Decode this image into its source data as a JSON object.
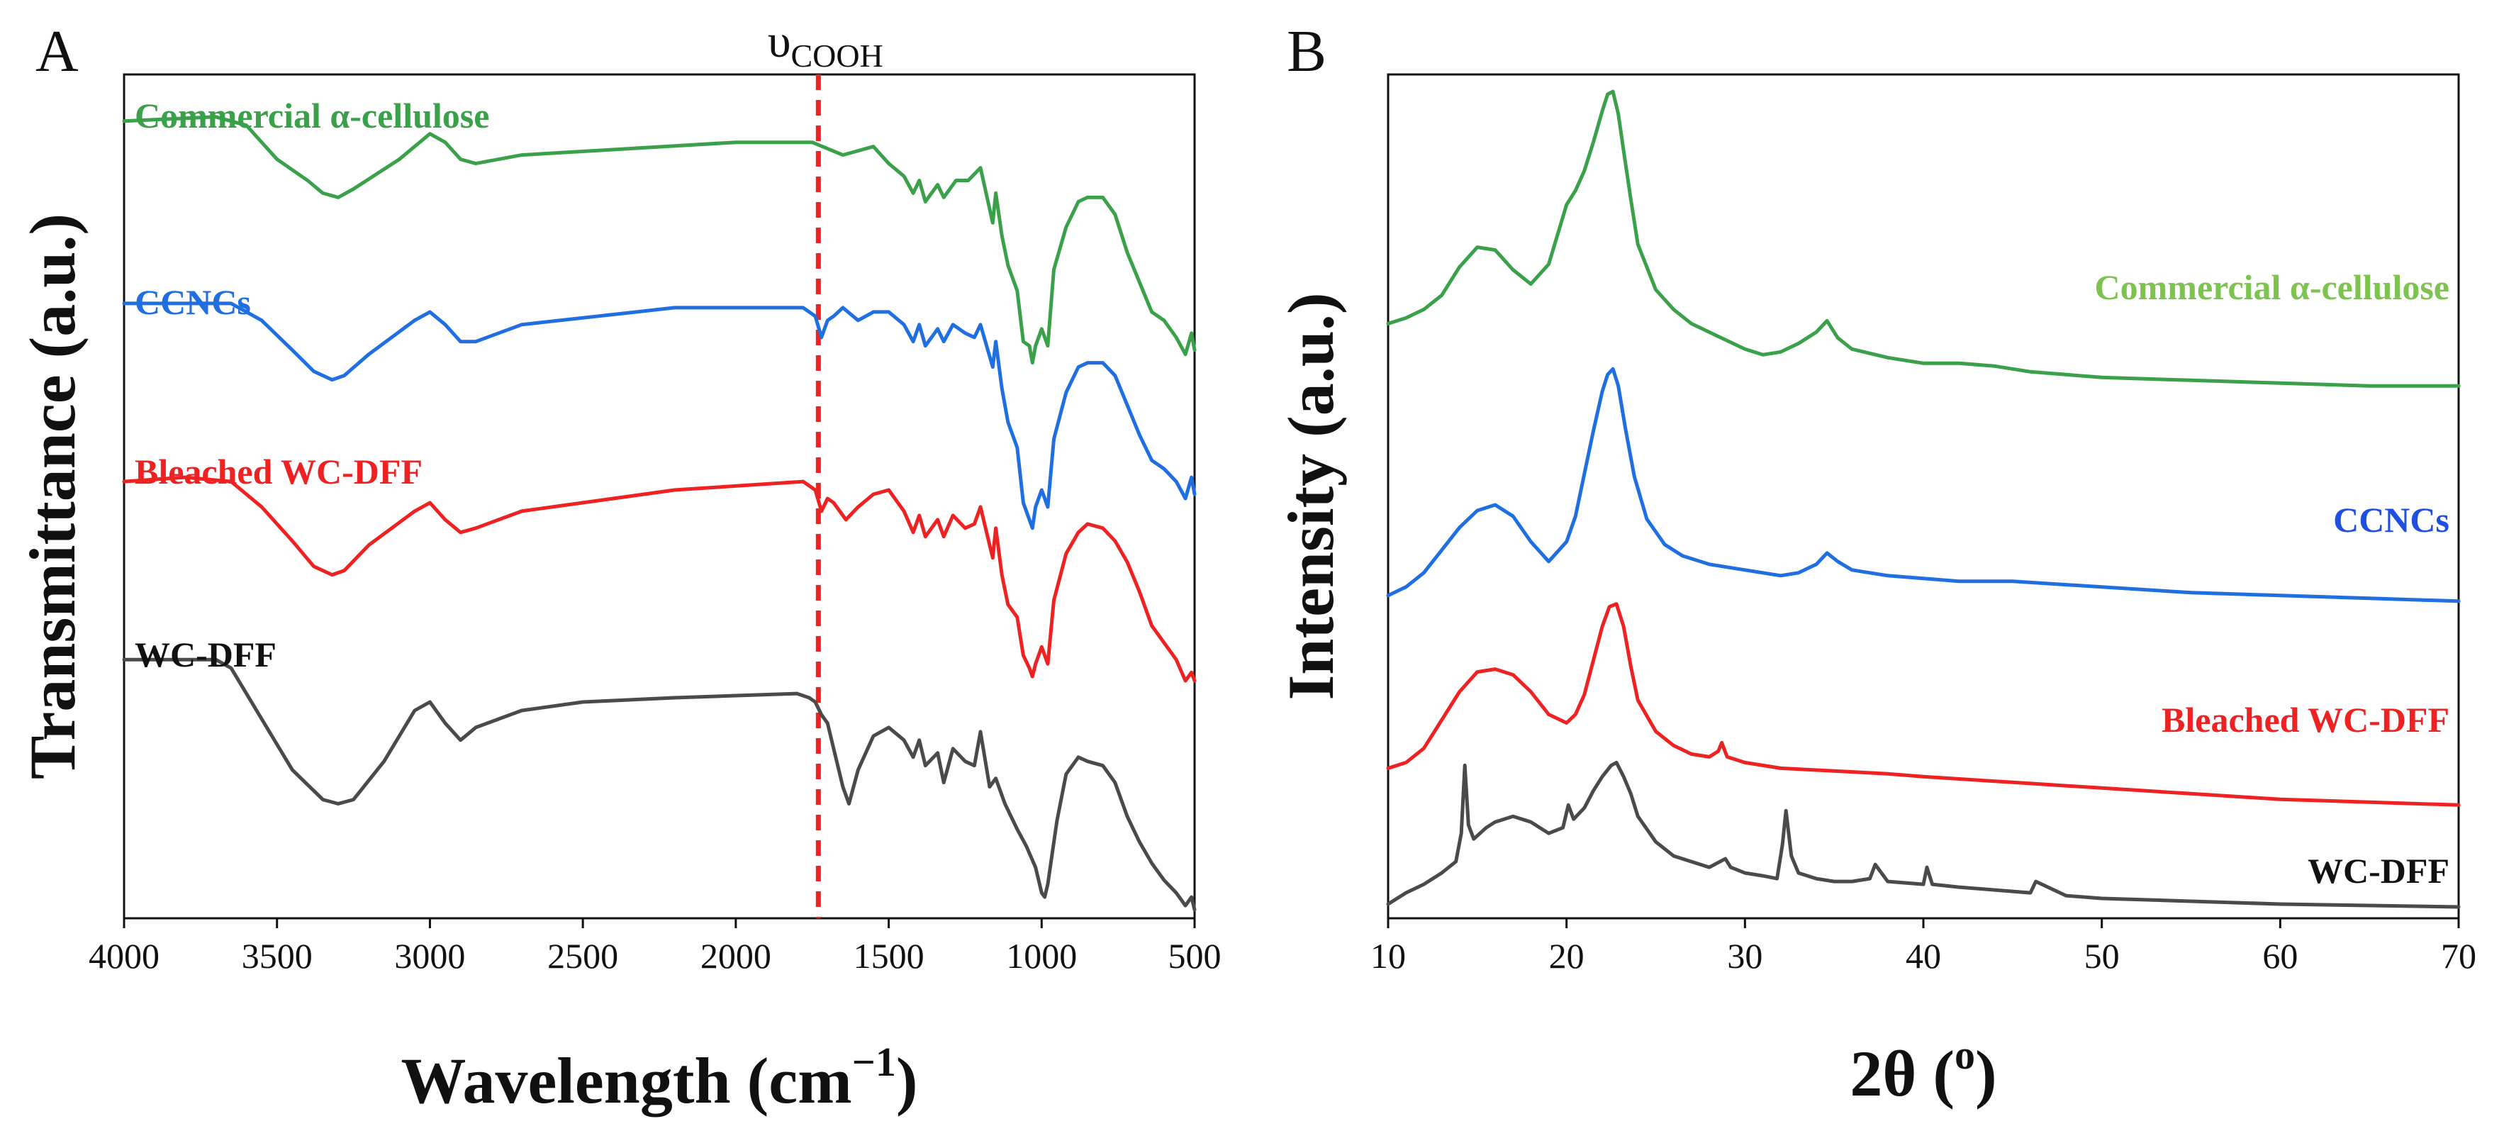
{
  "chart_data": [
    {
      "panel": "A",
      "type": "line",
      "xlabel": "Wavelength (cm",
      "xlabel_sup": "−1",
      "xlabel_close": ")",
      "ylabel": "Transmittance (a.u.)",
      "xlim": [
        4000,
        500
      ],
      "xticks": [
        "4000",
        "3500",
        "3000",
        "2500",
        "2000",
        "1500",
        "1000",
        "500"
      ],
      "xtick_values": [
        4000,
        3500,
        3000,
        2500,
        2000,
        1500,
        1000,
        500
      ],
      "ylim": [
        -1.5,
        18.4
      ],
      "yticks_shown": false,
      "reference_line": {
        "x": 1730,
        "color": "#ee2222",
        "style": "dashed",
        "label": "υ",
        "label_sub": "COOH"
      },
      "series": [
        {
          "name": "Commercial α-cellulose",
          "color": "#3aa04a",
          "baseline": 17.3,
          "x": [
            4000,
            3850,
            3700,
            3600,
            3500,
            3400,
            3350,
            3300,
            3250,
            3100,
            3000,
            2950,
            2900,
            2850,
            2700,
            2000,
            1750,
            1650,
            1600,
            1550,
            1500,
            1450,
            1420,
            1400,
            1380,
            1340,
            1320,
            1280,
            1240,
            1200,
            1160,
            1150,
            1130,
            1110,
            1080,
            1060,
            1040,
            1030,
            1020,
            1000,
            980,
            960,
            920,
            880,
            850,
            800,
            760,
            720,
            680,
            640,
            600,
            560,
            530,
            510,
            500
          ],
          "y": [
            17.3,
            17.35,
            17.4,
            17.2,
            16.4,
            15.9,
            15.6,
            15.5,
            15.7,
            16.4,
            17.0,
            16.8,
            16.4,
            16.3,
            16.5,
            16.8,
            16.8,
            16.5,
            16.6,
            16.7,
            16.3,
            16.0,
            15.6,
            15.9,
            15.4,
            15.8,
            15.5,
            15.9,
            15.9,
            16.2,
            14.9,
            15.6,
            14.6,
            13.9,
            13.3,
            12.1,
            12.0,
            11.6,
            12.0,
            12.4,
            12.0,
            13.8,
            14.8,
            15.4,
            15.5,
            15.5,
            15.1,
            14.2,
            13.5,
            12.8,
            12.6,
            12.2,
            11.8,
            12.3,
            11.9
          ]
        },
        {
          "name": "CCNCs",
          "color": "#1f6fe0",
          "baseline": 13.0,
          "x": [
            4000,
            3800,
            3650,
            3550,
            3450,
            3380,
            3320,
            3280,
            3200,
            3050,
            3000,
            2950,
            2900,
            2850,
            2700,
            2200,
            2000,
            1780,
            1740,
            1720,
            1700,
            1680,
            1650,
            1600,
            1550,
            1500,
            1450,
            1420,
            1400,
            1380,
            1340,
            1320,
            1290,
            1250,
            1220,
            1200,
            1160,
            1150,
            1130,
            1110,
            1080,
            1060,
            1040,
            1030,
            1020,
            1000,
            980,
            960,
            920,
            880,
            850,
            800,
            760,
            720,
            680,
            640,
            600,
            560,
            530,
            510,
            500
          ],
          "y": [
            13.0,
            13.0,
            13.0,
            12.6,
            11.9,
            11.4,
            11.2,
            11.3,
            11.8,
            12.6,
            12.8,
            12.5,
            12.1,
            12.1,
            12.5,
            12.9,
            12.9,
            12.9,
            12.7,
            12.2,
            12.6,
            12.7,
            12.9,
            12.6,
            12.8,
            12.8,
            12.5,
            12.1,
            12.5,
            12.0,
            12.4,
            12.1,
            12.5,
            12.3,
            12.2,
            12.5,
            11.5,
            12.1,
            11.0,
            10.2,
            9.6,
            8.3,
            7.9,
            7.7,
            8.2,
            8.6,
            8.2,
            9.8,
            10.9,
            11.5,
            11.6,
            11.6,
            11.3,
            10.6,
            9.9,
            9.3,
            9.1,
            8.8,
            8.4,
            8.9,
            8.5
          ]
        },
        {
          "name": "Bleached WC-DFF",
          "color": "#ee2222",
          "baseline": 8.8,
          "x": [
            4000,
            3800,
            3650,
            3550,
            3450,
            3380,
            3320,
            3280,
            3200,
            3050,
            3000,
            2950,
            2900,
            2850,
            2700,
            2200,
            1780,
            1740,
            1720,
            1700,
            1680,
            1640,
            1600,
            1550,
            1500,
            1450,
            1420,
            1400,
            1380,
            1340,
            1320,
            1290,
            1250,
            1220,
            1200,
            1160,
            1150,
            1130,
            1110,
            1080,
            1060,
            1040,
            1030,
            1020,
            1000,
            980,
            960,
            920,
            880,
            850,
            800,
            760,
            720,
            680,
            640,
            600,
            560,
            530,
            510,
            500
          ],
          "y": [
            8.8,
            8.9,
            8.8,
            8.2,
            7.4,
            6.8,
            6.6,
            6.7,
            7.3,
            8.1,
            8.3,
            7.9,
            7.6,
            7.7,
            8.1,
            8.6,
            8.8,
            8.6,
            8.1,
            8.4,
            8.3,
            7.9,
            8.2,
            8.5,
            8.6,
            8.1,
            7.6,
            8.0,
            7.5,
            7.9,
            7.5,
            8.0,
            7.7,
            7.8,
            8.2,
            7.0,
            7.7,
            6.6,
            5.9,
            5.6,
            4.7,
            4.4,
            4.2,
            4.5,
            4.9,
            4.5,
            6.0,
            7.1,
            7.6,
            7.8,
            7.7,
            7.4,
            6.9,
            6.2,
            5.4,
            5.0,
            4.6,
            4.1,
            4.3,
            4.1
          ]
        },
        {
          "name": "WC-DFF",
          "color": "#4a4a4a",
          "baseline": 4.6,
          "x": [
            4000,
            3800,
            3700,
            3650,
            3550,
            3450,
            3350,
            3300,
            3250,
            3150,
            3050,
            3000,
            2950,
            2900,
            2850,
            2700,
            2500,
            2200,
            1800,
            1760,
            1740,
            1720,
            1700,
            1680,
            1650,
            1630,
            1600,
            1550,
            1500,
            1450,
            1420,
            1400,
            1380,
            1340,
            1320,
            1290,
            1250,
            1220,
            1200,
            1170,
            1150,
            1120,
            1080,
            1050,
            1020,
            1000,
            990,
            980,
            950,
            920,
            880,
            850,
            800,
            760,
            720,
            680,
            640,
            600,
            560,
            530,
            510,
            500
          ],
          "y": [
            4.6,
            4.6,
            4.6,
            4.4,
            3.2,
            2.0,
            1.3,
            1.2,
            1.3,
            2.2,
            3.4,
            3.6,
            3.1,
            2.7,
            3.0,
            3.4,
            3.6,
            3.7,
            3.8,
            3.7,
            3.6,
            3.3,
            3.1,
            2.5,
            1.6,
            1.2,
            2.0,
            2.8,
            3.0,
            2.7,
            2.3,
            2.7,
            2.1,
            2.4,
            1.7,
            2.5,
            2.2,
            2.1,
            2.9,
            1.6,
            1.8,
            1.2,
            0.6,
            0.2,
            -0.3,
            -0.9,
            -1.0,
            -0.7,
            0.8,
            1.9,
            2.3,
            2.2,
            2.1,
            1.7,
            0.9,
            0.3,
            -0.2,
            -0.6,
            -0.9,
            -1.2,
            -1.0,
            -1.3
          ]
        }
      ]
    },
    {
      "panel": "B",
      "type": "line",
      "xlabel": "2θ (",
      "xlabel_sup": "o",
      "xlabel_close": ")",
      "ylabel": "Intensity (a.u.)",
      "xlim": [
        10,
        70
      ],
      "xticks": [
        "10",
        "20",
        "30",
        "40",
        "50",
        "60",
        "70"
      ],
      "xtick_values": [
        10,
        20,
        30,
        40,
        50,
        60,
        70
      ],
      "ylim": [
        -1.8,
        28.0
      ],
      "yticks_shown": false,
      "series": [
        {
          "name": "Commercial α-cellulose",
          "color": "#3aa04a",
          "x": [
            10,
            11,
            12,
            13,
            14,
            15,
            16,
            17,
            18,
            19,
            20,
            20.5,
            21,
            21.5,
            22,
            22.3,
            22.6,
            22.9,
            23.2,
            23.6,
            24,
            25,
            26,
            27,
            28,
            29,
            30,
            31,
            32,
            33,
            34,
            34.6,
            35.2,
            36,
            38,
            40,
            42,
            44,
            46,
            50,
            55,
            60,
            65,
            70
          ],
          "y": [
            19.2,
            19.4,
            19.7,
            20.2,
            21.2,
            21.9,
            21.8,
            21.1,
            20.6,
            21.3,
            23.4,
            23.9,
            24.6,
            25.6,
            26.7,
            27.3,
            27.4,
            26.6,
            25.3,
            23.6,
            22.0,
            20.4,
            19.7,
            19.2,
            18.9,
            18.6,
            18.3,
            18.1,
            18.2,
            18.5,
            18.9,
            19.3,
            18.7,
            18.3,
            18.0,
            17.8,
            17.8,
            17.7,
            17.5,
            17.3,
            17.2,
            17.1,
            17.0,
            17.0
          ]
        },
        {
          "name": "CCNCs",
          "color": "#1f6fe0",
          "x": [
            10,
            11,
            12,
            13,
            14,
            15,
            16,
            17,
            18,
            19,
            20,
            20.5,
            21,
            21.5,
            22,
            22.3,
            22.6,
            22.9,
            23.3,
            23.8,
            24.5,
            25.5,
            26.5,
            28,
            30,
            32,
            33,
            34,
            34.6,
            35.2,
            36,
            38,
            40,
            42,
            45,
            50,
            55,
            60,
            65,
            70
          ],
          "y": [
            9.6,
            9.9,
            10.4,
            11.2,
            12.0,
            12.6,
            12.8,
            12.4,
            11.5,
            10.8,
            11.5,
            12.4,
            13.9,
            15.4,
            16.8,
            17.4,
            17.6,
            17.0,
            15.5,
            13.8,
            12.3,
            11.4,
            11.0,
            10.7,
            10.5,
            10.3,
            10.4,
            10.7,
            11.1,
            10.8,
            10.5,
            10.3,
            10.2,
            10.1,
            10.1,
            9.9,
            9.7,
            9.6,
            9.5,
            9.4
          ]
        },
        {
          "name": "Bleached WC-DFF",
          "color": "#ee2222",
          "x": [
            10,
            11,
            12,
            13,
            14,
            15,
            16,
            17,
            18,
            19,
            20,
            20.5,
            21,
            21.5,
            22,
            22.4,
            22.8,
            23.2,
            23.6,
            24,
            25,
            26,
            27,
            28,
            28.5,
            28.7,
            29,
            30,
            32,
            35,
            38,
            40,
            45,
            50,
            55,
            60,
            65,
            70
          ],
          "y": [
            3.5,
            3.7,
            4.2,
            5.2,
            6.2,
            6.9,
            7.0,
            6.8,
            6.2,
            5.4,
            5.1,
            5.4,
            6.1,
            7.3,
            8.5,
            9.2,
            9.3,
            8.5,
            7.1,
            5.9,
            4.8,
            4.3,
            4.0,
            3.9,
            4.1,
            4.4,
            3.9,
            3.7,
            3.5,
            3.4,
            3.3,
            3.2,
            3.0,
            2.8,
            2.6,
            2.4,
            2.3,
            2.2
          ]
        },
        {
          "name": "WC-DFF",
          "color": "#4a4a4a",
          "x": [
            10,
            11,
            12,
            13,
            13.8,
            14.1,
            14.3,
            14.5,
            14.8,
            15.5,
            16,
            17,
            18,
            19,
            19.8,
            20.1,
            20.4,
            21,
            21.5,
            22,
            22.5,
            22.8,
            23.2,
            23.6,
            24,
            25,
            26,
            27,
            28,
            28.9,
            29.2,
            30,
            31,
            31.8,
            32.1,
            32.3,
            32.6,
            33,
            34,
            35,
            36,
            37,
            37.3,
            38,
            40,
            40.2,
            40.5,
            42,
            44,
            46,
            46.3,
            48,
            50,
            55,
            60,
            65,
            70
          ],
          "y": [
            -1.3,
            -0.9,
            -0.6,
            -0.2,
            0.2,
            1.2,
            3.6,
            1.5,
            1.0,
            1.4,
            1.6,
            1.8,
            1.6,
            1.2,
            1.4,
            2.2,
            1.7,
            2.1,
            2.7,
            3.2,
            3.6,
            3.7,
            3.2,
            2.6,
            1.8,
            0.9,
            0.4,
            0.2,
            0.0,
            0.3,
            0.0,
            -0.2,
            -0.3,
            -0.4,
            0.8,
            2.0,
            0.4,
            -0.2,
            -0.4,
            -0.5,
            -0.5,
            -0.4,
            0.1,
            -0.5,
            -0.6,
            0.0,
            -0.6,
            -0.7,
            -0.8,
            -0.9,
            -0.5,
            -1.0,
            -1.1,
            -1.2,
            -1.3,
            -1.35,
            -1.4
          ]
        }
      ]
    }
  ]
}
